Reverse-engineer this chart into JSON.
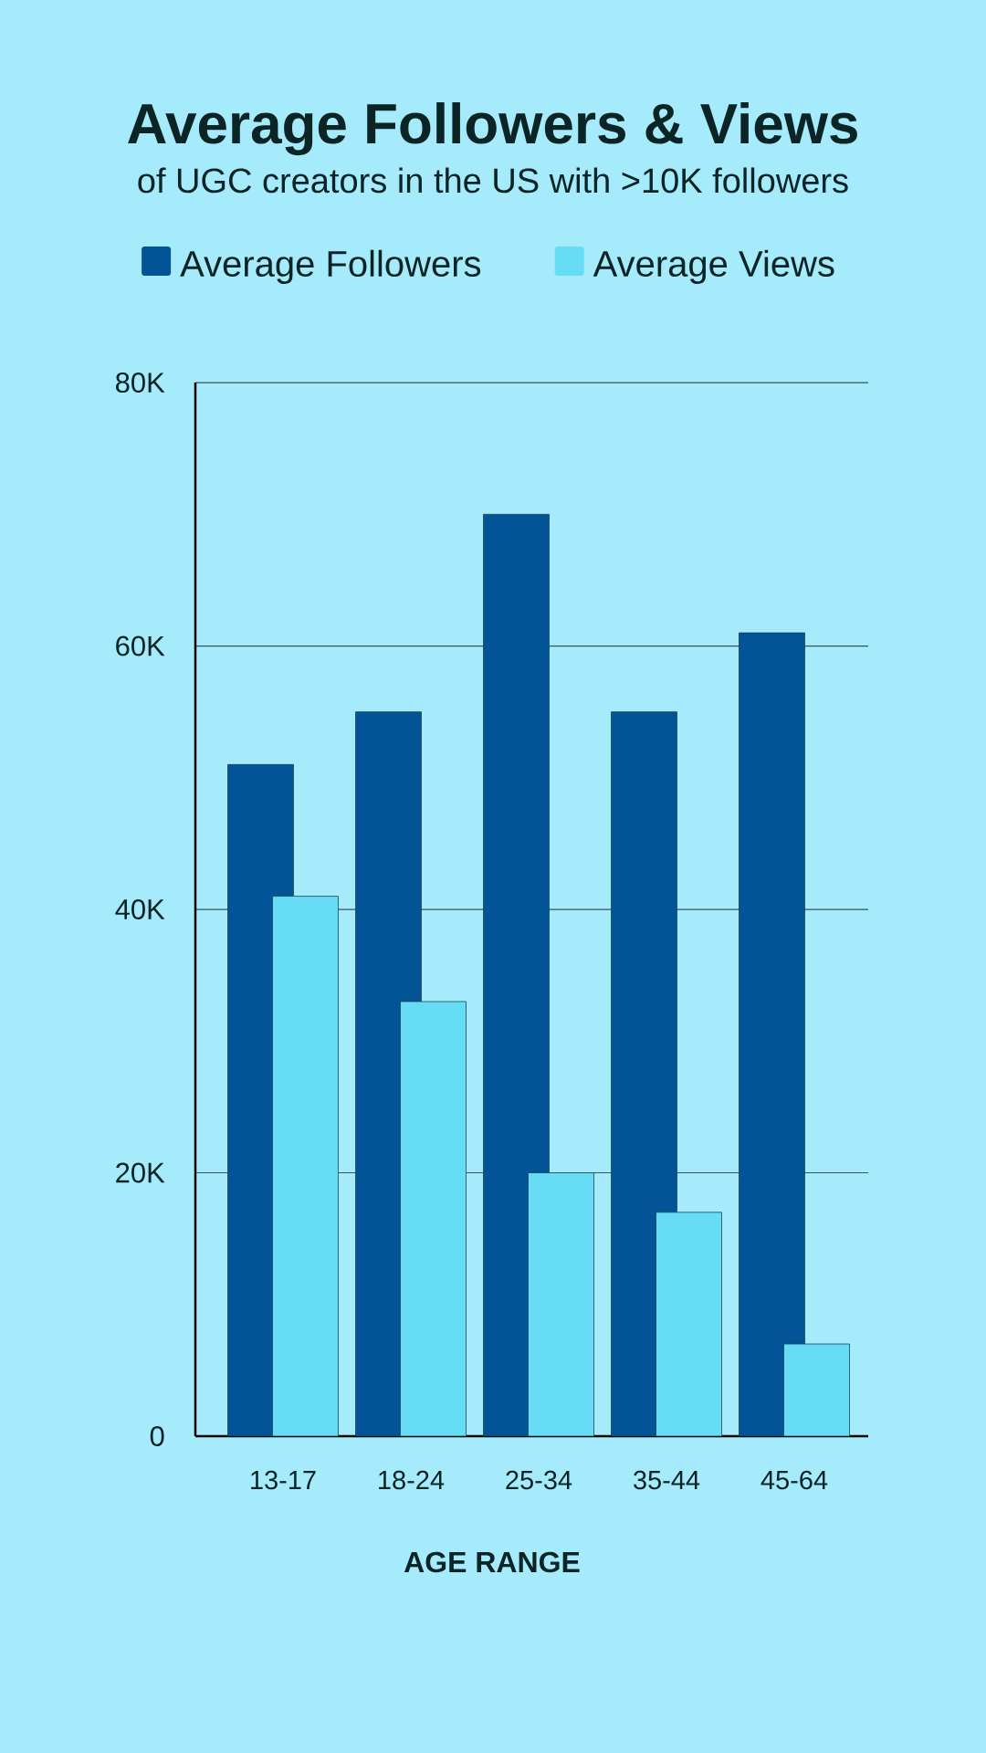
{
  "chart_data": {
    "type": "bar",
    "title": "Average Followers & Views",
    "subtitle": "of UGC creators in the US with >10K followers",
    "xlabel": "AGE RANGE",
    "categories": [
      "13-17",
      "18-24",
      "25-34",
      "35-44",
      "45-64"
    ],
    "series": [
      {
        "name": "Average Followers",
        "color": "#035397",
        "values": [
          51000,
          55000,
          70000,
          55000,
          61000
        ]
      },
      {
        "name": "Average Views",
        "color": "#66dcf5",
        "values": [
          41000,
          33000,
          20000,
          17000,
          7000
        ]
      }
    ],
    "ylim": [
      0,
      80000
    ],
    "yticks": [
      0,
      {
        "value": 20000,
        "label": "20K"
      },
      {
        "value": 40000,
        "label": "40K"
      },
      {
        "value": 60000,
        "label": "60K"
      },
      {
        "value": 80000,
        "label": "80K"
      }
    ],
    "grid": "y",
    "legend": "top"
  }
}
